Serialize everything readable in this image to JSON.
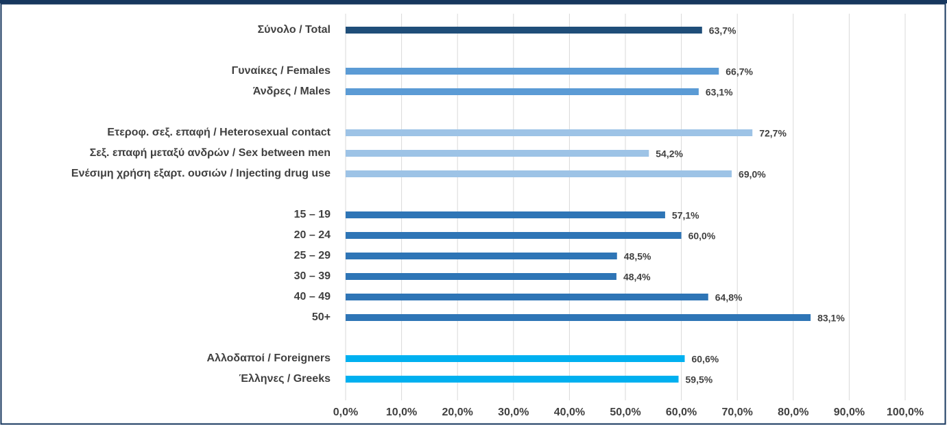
{
  "chart_data": {
    "type": "bar",
    "orientation": "horizontal",
    "categories": [
      "Σύνολο / Total",
      null,
      "Γυναίκες / Females",
      "Άνδρες / Males",
      null,
      "Ετεροφ. σεξ. επαφή / Heterosexual contact",
      "Σεξ. επαφή μεταξύ ανδρών / Sex between men",
      "Ενέσιμη χρήση εξαρτ. ουσιών / Injecting drug use",
      null,
      "15 – 19",
      "20 – 24",
      "25 – 29",
      "30 – 39",
      "40 – 49",
      "50+",
      null,
      "Αλλοδαποί / Foreigners",
      "Έλληνες / Greeks"
    ],
    "values": [
      63.7,
      null,
      66.7,
      63.1,
      null,
      72.7,
      54.2,
      69.0,
      null,
      57.1,
      60.0,
      48.5,
      48.4,
      64.8,
      83.1,
      null,
      60.6,
      59.5
    ],
    "value_labels": [
      "63,7%",
      null,
      "66,7%",
      "63,1%",
      null,
      "72,7%",
      "54,2%",
      "69,0%",
      null,
      "57,1%",
      "60,0%",
      "48,5%",
      "48,4%",
      "64,8%",
      "83,1%",
      null,
      "60,6%",
      "59,5%"
    ],
    "colors": [
      "#1f4e79",
      null,
      "#5b9bd5",
      "#5b9bd5",
      null,
      "#9dc3e6",
      "#9dc3e6",
      "#9dc3e6",
      null,
      "#2e75b6",
      "#2e75b6",
      "#2e75b6",
      "#2e75b6",
      "#2e75b6",
      "#2e75b6",
      null,
      "#00b0f0",
      "#00b0f0"
    ],
    "xlim": [
      0,
      100
    ],
    "xticks": [
      {
        "value": 0,
        "label": "0,0%"
      },
      {
        "value": 10,
        "label": "10,0%"
      },
      {
        "value": 20,
        "label": "20,0%"
      },
      {
        "value": 30,
        "label": "30,0%"
      },
      {
        "value": 40,
        "label": "40,0%"
      },
      {
        "value": 50,
        "label": "50,0%"
      },
      {
        "value": 60,
        "label": "60,0%"
      },
      {
        "value": 70,
        "label": "70,0%"
      },
      {
        "value": 80,
        "label": "80,0%"
      },
      {
        "value": 90,
        "label": "90,0%"
      },
      {
        "value": 100,
        "label": "100,0%"
      }
    ],
    "grid": true
  }
}
